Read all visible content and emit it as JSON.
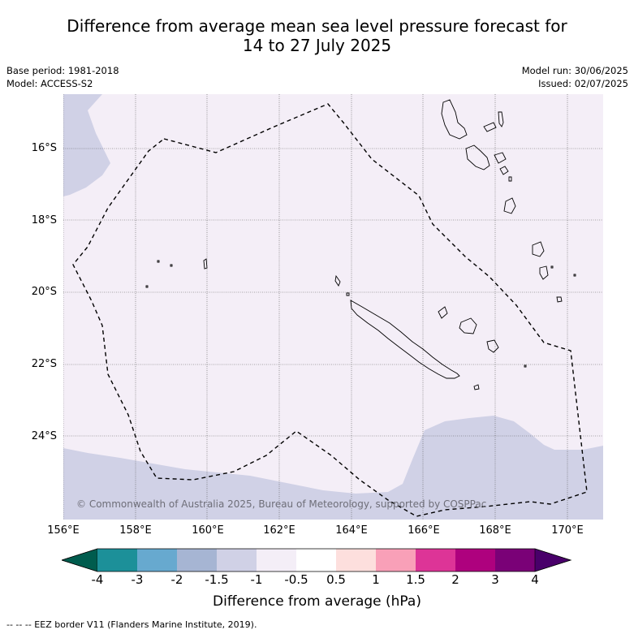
{
  "header": {
    "title_line1": "Difference from average mean sea level pressure forecast for",
    "title_line2": "14 to 27 July 2025",
    "base_period": "Base period: 1981-2018",
    "model": "Model: ACCESS-S2",
    "model_run": "Model run: 30/06/2025",
    "issued": "Issued: 02/07/2025"
  },
  "map": {
    "copyright": "© Commonwealth of Australia 2025, Bureau of Meteorology, supported by COSPPac",
    "lat_ticks": [
      "16°S",
      "18°S",
      "20°S",
      "22°S",
      "24°S"
    ],
    "lon_ticks": [
      "156°E",
      "158°E",
      "160°E",
      "162°E",
      "164°E",
      "166°E",
      "168°E",
      "170°E"
    ],
    "colors": {
      "background_fill": "#f4eef7",
      "negative_fill": "#d0d1e6",
      "coastline": "#000000",
      "eez_line": "#000000",
      "grid": "#555555"
    }
  },
  "colorbar": {
    "labels": [
      "-4",
      "-3",
      "-2",
      "-1.5",
      "-1",
      "-0.5",
      "0.5",
      "1",
      "1.5",
      "2",
      "3",
      "4"
    ],
    "colors": [
      "#005c4e",
      "#1c9099",
      "#67a9cf",
      "#a6b5d3",
      "#d0d1e6",
      "#f4eef7",
      "#ffffff",
      "#fddfdd",
      "#f9a0b8",
      "#dd3497",
      "#ae017e",
      "#7a0177",
      "#49006a"
    ],
    "title": "Difference from average (hPa)"
  },
  "footer": {
    "legend": "--  --  -- EEZ border V11 (Flanders Marine Institute, 2019)."
  }
}
